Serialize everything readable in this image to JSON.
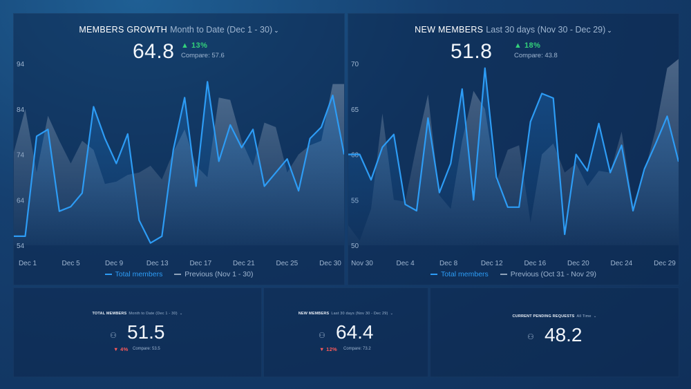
{
  "colors": {
    "current": "#2d9cf5",
    "previous": "#8fa3ba",
    "up": "#33d17a",
    "down": "#ff5a5a"
  },
  "icons": {
    "dropdown": "chevron-down-icon",
    "user": "user-icon",
    "up": "triangle-up-icon",
    "down": "triangle-down-icon"
  },
  "members_growth": {
    "title": "MEMBERS GROWTH",
    "range": "Month to Date (Dec 1 - 30)",
    "value": "64.8",
    "delta": "▲ 13%",
    "compare": "Compare: 57.6",
    "legend_current": "Total members",
    "legend_previous": "Previous (Nov 1 - 30)"
  },
  "new_members": {
    "title": "NEW MEMBERS",
    "range": "Last 30 days (Nov 30 - Dec 29)",
    "value": "51.8",
    "delta": "▲ 18%",
    "compare": "Compare: 43.8",
    "legend_current": "Total members",
    "legend_previous": "Previous (Oct 31 - Nov 29)"
  },
  "total_members_kpi": {
    "title": "TOTAL MEMBERS",
    "range": "Month to Date (Dec 1 - 30)",
    "value": "51.5",
    "delta": "▼ 4%",
    "compare": "Compare: 53.5"
  },
  "new_members_kpi": {
    "title": "NEW MEMBERS",
    "range": "Last 30 days (Nov 30 - Dec 29)",
    "value": "64.4",
    "delta": "▼ 12%",
    "compare": "Compare: 73.2"
  },
  "pending_kpi": {
    "title": "CURRENT PENDING REQUESTS",
    "range": "All Time",
    "value": "48.2"
  },
  "chart_data": [
    {
      "type": "line",
      "title": "MEMBERS GROWTH",
      "ylim": [
        54,
        94
      ],
      "yticks": [
        94,
        84,
        74,
        64,
        54
      ],
      "xtick_labels": [
        "Dec 1",
        "Dec 5",
        "Dec 9",
        "Dec 13",
        "Dec 17",
        "Dec 21",
        "Dec 25",
        "Dec 30"
      ],
      "x": [
        1,
        2,
        3,
        4,
        5,
        6,
        7,
        8,
        9,
        10,
        11,
        12,
        13,
        14,
        15,
        16,
        17,
        18,
        19,
        20,
        21,
        22,
        23,
        24,
        25,
        26,
        27,
        28,
        29,
        30
      ],
      "series": [
        {
          "name": "Total members",
          "values": [
            56,
            56,
            78,
            79.5,
            61.5,
            62.5,
            65.5,
            84.5,
            77.5,
            72,
            78.5,
            59.5,
            54.5,
            56,
            75,
            86.5,
            67,
            90,
            72.5,
            80.5,
            75.5,
            79.5,
            67,
            70,
            73,
            66,
            77.5,
            80,
            87,
            74
          ]
        },
        {
          "name": "Previous (Nov 1 - 30)",
          "values": [
            74.5,
            84,
            70,
            82.5,
            77,
            72,
            77,
            75,
            67.5,
            68,
            69.5,
            70,
            71.5,
            68.5,
            74.5,
            79.5,
            71.5,
            69,
            86.5,
            86,
            77,
            71.5,
            81,
            80,
            70,
            74,
            76,
            77,
            89.5,
            89.5
          ]
        }
      ]
    },
    {
      "type": "line",
      "title": "NEW MEMBERS",
      "ylim": [
        50,
        70
      ],
      "yticks": [
        70,
        65,
        60,
        55,
        50
      ],
      "xtick_labels": [
        "Nov 30",
        "Dec 4",
        "Dec 8",
        "Dec 12",
        "Dec 16",
        "Dec 20",
        "Dec 24",
        "Dec 29"
      ],
      "x": [
        1,
        2,
        3,
        4,
        5,
        6,
        7,
        8,
        9,
        10,
        11,
        12,
        13,
        14,
        15,
        16,
        17,
        18,
        19,
        20,
        21,
        22,
        23,
        24,
        25,
        26,
        27,
        28,
        29,
        30
      ],
      "series": [
        {
          "name": "Total members",
          "values": [
            60,
            60,
            57.2,
            60.8,
            62.2,
            54.5,
            53.8,
            64,
            55.8,
            59,
            67.2,
            55,
            69.5,
            57.5,
            54.2,
            54.2,
            63.6,
            66.7,
            66.2,
            51.2,
            60,
            58.2,
            63.4,
            58,
            61,
            53.8,
            58.4,
            61.2,
            64.2,
            59.2
          ]
        },
        {
          "name": "Previous (Oct 31 - Nov 29)",
          "values": [
            52.2,
            50.5,
            54,
            64.5,
            55,
            54.8,
            61,
            66.6,
            55.5,
            54,
            61.5,
            67,
            65,
            57,
            60.5,
            61,
            52.5,
            60,
            61.2,
            58,
            59,
            56.5,
            58.2,
            58,
            62.5,
            54.5,
            58,
            62.8,
            69.5,
            70.5
          ]
        }
      ]
    }
  ]
}
